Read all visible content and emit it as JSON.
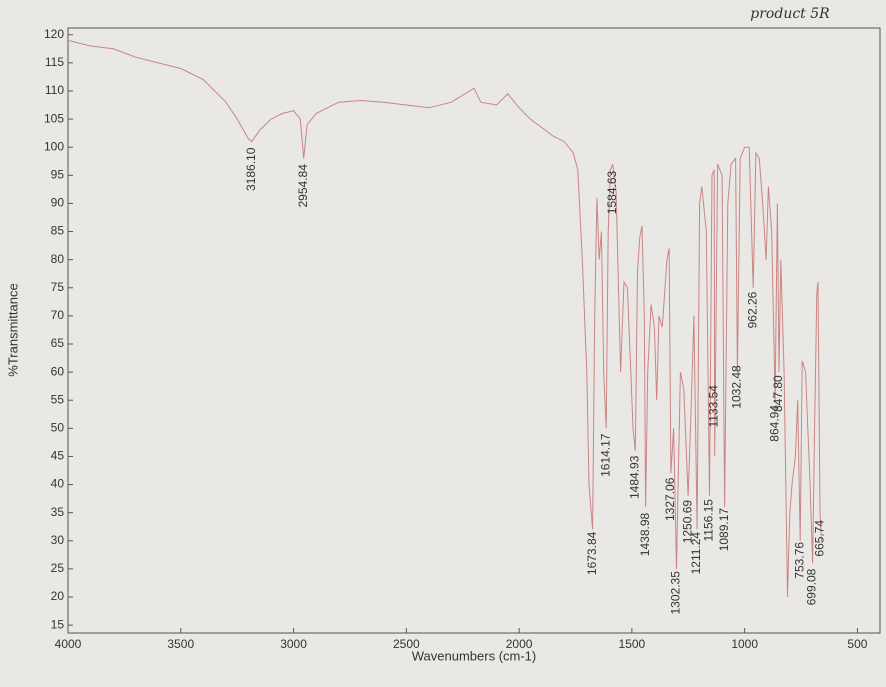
{
  "chart_data": {
    "type": "line",
    "annotation": "product 5R",
    "xlabel": "Wavenumbers (cm-1)",
    "ylabel": "%Transmittance",
    "color": "#c98585",
    "xlim": [
      4000,
      400
    ],
    "ylim": [
      13.6,
      121.2
    ],
    "xticks": [
      4000,
      3500,
      3000,
      2500,
      2000,
      1500,
      1000,
      500
    ],
    "yticks": [
      15,
      20,
      25,
      30,
      35,
      40,
      45,
      50,
      55,
      60,
      65,
      70,
      75,
      80,
      85,
      90,
      95,
      100,
      105,
      110,
      115,
      120
    ],
    "x": [
      4000,
      3900,
      3800,
      3700,
      3600,
      3500,
      3400,
      3300,
      3250,
      3200,
      3186,
      3150,
      3100,
      3050,
      3000,
      2970,
      2955,
      2940,
      2900,
      2850,
      2800,
      2700,
      2600,
      2500,
      2400,
      2300,
      2200,
      2170,
      2100,
      2050,
      2000,
      1950,
      1900,
      1850,
      1800,
      1760,
      1740,
      1720,
      1700,
      1690,
      1674,
      1665,
      1655,
      1645,
      1635,
      1625,
      1614,
      1605,
      1595,
      1585,
      1570,
      1550,
      1535,
      1520,
      1505,
      1495,
      1485,
      1475,
      1465,
      1455,
      1445,
      1439,
      1430,
      1415,
      1400,
      1390,
      1380,
      1365,
      1345,
      1335,
      1327,
      1315,
      1302,
      1295,
      1285,
      1270,
      1251,
      1240,
      1225,
      1211,
      1200,
      1190,
      1170,
      1156,
      1145,
      1135,
      1133,
      1120,
      1100,
      1089,
      1075,
      1060,
      1040,
      1032,
      1020,
      1000,
      980,
      962,
      950,
      935,
      920,
      905,
      895,
      880,
      865,
      855,
      848,
      840,
      825,
      810,
      800,
      790,
      775,
      765,
      754,
      745,
      730,
      720,
      710,
      699,
      690,
      680,
      675,
      666,
      660
    ],
    "values": [
      119,
      118,
      117.5,
      116,
      115,
      114,
      112,
      108,
      105,
      101.5,
      101,
      103,
      105,
      106,
      106.5,
      105,
      98,
      104,
      106,
      107,
      108,
      108.3,
      108,
      107.5,
      107,
      108,
      110.5,
      108,
      107.5,
      109.5,
      107,
      105,
      103.5,
      102,
      101,
      99,
      96,
      80,
      60,
      40,
      32,
      70,
      91,
      80,
      85,
      60,
      50,
      85,
      96,
      97,
      92,
      60,
      76,
      75,
      60,
      50,
      46,
      78,
      84,
      86,
      70,
      36,
      60,
      72,
      68,
      55,
      70,
      68,
      80,
      82,
      42,
      50,
      25,
      40,
      60,
      57,
      38,
      50,
      70,
      32,
      90,
      93,
      85,
      38,
      95,
      96,
      45,
      97,
      95,
      36,
      90,
      97,
      98,
      60,
      98,
      100,
      100,
      75,
      99,
      98,
      90,
      80,
      93,
      85,
      55,
      90,
      60,
      80,
      60,
      20,
      35,
      40,
      45,
      55,
      30,
      62,
      60,
      50,
      40,
      26,
      50,
      74,
      76,
      35,
      30
    ],
    "peaks": [
      {
        "value": 3186.1,
        "label": "3186.10"
      },
      {
        "value": 2954.84,
        "label": "2954.84"
      },
      {
        "value": 1673.84,
        "label": "1673.84"
      },
      {
        "value": 1614.17,
        "label": "1614.17"
      },
      {
        "value": 1584.63,
        "label": "1584.63"
      },
      {
        "value": 1484.93,
        "label": "1484.93"
      },
      {
        "value": 1438.98,
        "label": "1438.98"
      },
      {
        "value": 1327.06,
        "label": "1327.06"
      },
      {
        "value": 1302.35,
        "label": "1302.35"
      },
      {
        "value": 1250.69,
        "label": "1250.69"
      },
      {
        "value": 1211.24,
        "label": "1211.24"
      },
      {
        "value": 1156.15,
        "label": "1156.15"
      },
      {
        "value": 1133.54,
        "label": "1133.54"
      },
      {
        "value": 1089.17,
        "label": "1089.17"
      },
      {
        "value": 1032.48,
        "label": "1032.48"
      },
      {
        "value": 962.26,
        "label": "962.26"
      },
      {
        "value": 864.94,
        "label": "864.94"
      },
      {
        "value": 847.8,
        "label": "847.80"
      },
      {
        "value": 753.76,
        "label": "753.76"
      },
      {
        "value": 699.08,
        "label": "699.08"
      },
      {
        "value": 665.74,
        "label": "665.74"
      }
    ]
  }
}
